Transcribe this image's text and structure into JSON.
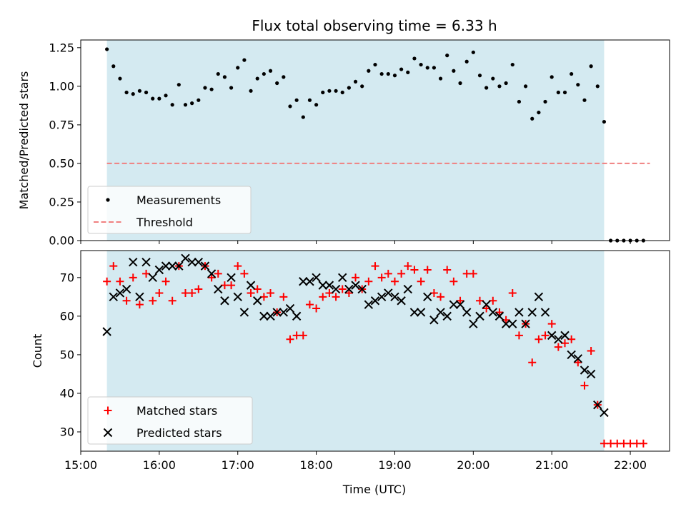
{
  "chart_data": {
    "type": "scatter",
    "title": "Flux total observing time = 6.33 h",
    "xlabel": "Time (UTC)",
    "x_ticks": [
      "15:00",
      "16:00",
      "17:00",
      "18:00",
      "19:00",
      "20:00",
      "21:00",
      "22:00"
    ],
    "xlim": [
      "15:00",
      "22:30"
    ],
    "observing_window": [
      "15:20",
      "21:40"
    ],
    "window_color": "#d4eaf1",
    "top": {
      "ylabel": "Matched/Predicted stars",
      "ylim": [
        0,
        1.3
      ],
      "y_ticks": [
        "0.00",
        "0.25",
        "0.50",
        "0.75",
        "1.00",
        "1.25"
      ],
      "legend": {
        "placement": "lower-left",
        "entries": [
          "Measurements",
          "Threshold"
        ]
      },
      "series": [
        {
          "name": "Measurements",
          "marker": "dot",
          "color": "#000000",
          "points": [
            [
              "15:20",
              1.24
            ],
            [
              "15:25",
              1.13
            ],
            [
              "15:30",
              1.05
            ],
            [
              "15:35",
              0.96
            ],
            [
              "15:40",
              0.95
            ],
            [
              "15:45",
              0.97
            ],
            [
              "15:50",
              0.96
            ],
            [
              "15:55",
              0.92
            ],
            [
              "16:00",
              0.92
            ],
            [
              "16:05",
              0.94
            ],
            [
              "16:10",
              0.88
            ],
            [
              "16:15",
              1.01
            ],
            [
              "16:20",
              0.88
            ],
            [
              "16:25",
              0.89
            ],
            [
              "16:30",
              0.91
            ],
            [
              "16:35",
              0.99
            ],
            [
              "16:40",
              0.98
            ],
            [
              "16:45",
              1.08
            ],
            [
              "16:50",
              1.06
            ],
            [
              "16:55",
              0.99
            ],
            [
              "17:00",
              1.12
            ],
            [
              "17:05",
              1.17
            ],
            [
              "17:10",
              0.97
            ],
            [
              "17:15",
              1.05
            ],
            [
              "17:20",
              1.08
            ],
            [
              "17:25",
              1.1
            ],
            [
              "17:30",
              1.02
            ],
            [
              "17:35",
              1.06
            ],
            [
              "17:40",
              0.87
            ],
            [
              "17:45",
              0.91
            ],
            [
              "17:50",
              0.8
            ],
            [
              "17:55",
              0.91
            ],
            [
              "18:00",
              0.88
            ],
            [
              "18:05",
              0.96
            ],
            [
              "18:10",
              0.97
            ],
            [
              "18:15",
              0.97
            ],
            [
              "18:20",
              0.96
            ],
            [
              "18:25",
              0.99
            ],
            [
              "18:30",
              1.03
            ],
            [
              "18:35",
              1.0
            ],
            [
              "18:40",
              1.1
            ],
            [
              "18:45",
              1.14
            ],
            [
              "18:50",
              1.08
            ],
            [
              "18:55",
              1.08
            ],
            [
              "19:00",
              1.07
            ],
            [
              "19:05",
              1.11
            ],
            [
              "19:10",
              1.09
            ],
            [
              "19:15",
              1.18
            ],
            [
              "19:20",
              1.14
            ],
            [
              "19:25",
              1.12
            ],
            [
              "19:30",
              1.12
            ],
            [
              "19:35",
              1.05
            ],
            [
              "19:40",
              1.2
            ],
            [
              "19:45",
              1.1
            ],
            [
              "19:50",
              1.02
            ],
            [
              "19:55",
              1.16
            ],
            [
              "20:00",
              1.22
            ],
            [
              "20:05",
              1.07
            ],
            [
              "20:10",
              0.99
            ],
            [
              "20:15",
              1.05
            ],
            [
              "20:20",
              1.0
            ],
            [
              "20:25",
              1.02
            ],
            [
              "20:30",
              1.14
            ],
            [
              "20:35",
              0.9
            ],
            [
              "20:40",
              1.0
            ],
            [
              "20:45",
              0.79
            ],
            [
              "20:50",
              0.83
            ],
            [
              "20:55",
              0.9
            ],
            [
              "21:00",
              1.06
            ],
            [
              "21:05",
              0.96
            ],
            [
              "21:10",
              0.96
            ],
            [
              "21:15",
              1.08
            ],
            [
              "21:20",
              1.01
            ],
            [
              "21:25",
              0.91
            ],
            [
              "21:30",
              1.13
            ],
            [
              "21:35",
              1.0
            ],
            [
              "21:40",
              0.77
            ],
            [
              "21:45",
              0.0
            ],
            [
              "21:50",
              0.0
            ],
            [
              "21:55",
              0.0
            ],
            [
              "22:00",
              0.0
            ],
            [
              "22:05",
              0.0
            ],
            [
              "22:10",
              0.0
            ]
          ]
        },
        {
          "name": "Threshold",
          "style": "dashed-line",
          "color": "#f08080",
          "points": [
            [
              "15:20",
              0.5
            ],
            [
              "22:15",
              0.5
            ]
          ]
        }
      ]
    },
    "bottom": {
      "ylabel": "Count",
      "ylim": [
        25,
        77
      ],
      "y_ticks": [
        "30",
        "40",
        "50",
        "60",
        "70"
      ],
      "legend": {
        "placement": "lower-left",
        "entries": [
          "Matched stars",
          "Predicted stars"
        ]
      },
      "series": [
        {
          "name": "Matched stars",
          "marker": "plus",
          "color": "#ff0000",
          "points": [
            [
              "15:20",
              69
            ],
            [
              "15:25",
              73
            ],
            [
              "15:30",
              69
            ],
            [
              "15:35",
              64
            ],
            [
              "15:40",
              70
            ],
            [
              "15:45",
              63
            ],
            [
              "15:50",
              71
            ],
            [
              "15:55",
              64
            ],
            [
              "16:00",
              66
            ],
            [
              "16:05",
              69
            ],
            [
              "16:10",
              64
            ],
            [
              "16:15",
              73
            ],
            [
              "16:20",
              66
            ],
            [
              "16:25",
              66
            ],
            [
              "16:30",
              67
            ],
            [
              "16:35",
              73
            ],
            [
              "16:40",
              70
            ],
            [
              "16:45",
              71
            ],
            [
              "16:50",
              68
            ],
            [
              "16:55",
              68
            ],
            [
              "17:00",
              73
            ],
            [
              "17:05",
              71
            ],
            [
              "17:10",
              66
            ],
            [
              "17:15",
              67
            ],
            [
              "17:20",
              65
            ],
            [
              "17:25",
              66
            ],
            [
              "17:30",
              61
            ],
            [
              "17:35",
              65
            ],
            [
              "17:40",
              54
            ],
            [
              "17:45",
              55
            ],
            [
              "17:50",
              55
            ],
            [
              "17:55",
              63
            ],
            [
              "18:00",
              62
            ],
            [
              "18:05",
              65
            ],
            [
              "18:10",
              66
            ],
            [
              "18:15",
              65
            ],
            [
              "18:20",
              67
            ],
            [
              "18:25",
              66
            ],
            [
              "18:30",
              70
            ],
            [
              "18:35",
              67
            ],
            [
              "18:40",
              69
            ],
            [
              "18:45",
              73
            ],
            [
              "18:50",
              70
            ],
            [
              "18:55",
              71
            ],
            [
              "19:00",
              69
            ],
            [
              "19:05",
              71
            ],
            [
              "19:10",
              73
            ],
            [
              "19:15",
              72
            ],
            [
              "19:20",
              69
            ],
            [
              "19:25",
              72
            ],
            [
              "19:30",
              66
            ],
            [
              "19:35",
              65
            ],
            [
              "19:40",
              72
            ],
            [
              "19:45",
              69
            ],
            [
              "19:50",
              64
            ],
            [
              "19:55",
              71
            ],
            [
              "20:00",
              71
            ],
            [
              "20:05",
              64
            ],
            [
              "20:10",
              62
            ],
            [
              "20:15",
              64
            ],
            [
              "20:20",
              61
            ],
            [
              "20:25",
              59
            ],
            [
              "20:30",
              66
            ],
            [
              "20:35",
              55
            ],
            [
              "20:40",
              58
            ],
            [
              "20:45",
              48
            ],
            [
              "20:50",
              54
            ],
            [
              "20:55",
              55
            ],
            [
              "21:00",
              58
            ],
            [
              "21:05",
              52
            ],
            [
              "21:10",
              53
            ],
            [
              "21:15",
              54
            ],
            [
              "21:20",
              48
            ],
            [
              "21:25",
              42
            ],
            [
              "21:30",
              51
            ],
            [
              "21:35",
              37
            ],
            [
              "21:40",
              27
            ],
            [
              "21:45",
              27
            ],
            [
              "21:50",
              27
            ],
            [
              "21:55",
              27
            ],
            [
              "22:00",
              27
            ],
            [
              "22:05",
              27
            ],
            [
              "22:10",
              27
            ]
          ]
        },
        {
          "name": "Predicted stars",
          "marker": "x",
          "color": "#000000",
          "points": [
            [
              "15:20",
              56
            ],
            [
              "15:25",
              65
            ],
            [
              "15:30",
              66
            ],
            [
              "15:35",
              67
            ],
            [
              "15:40",
              74
            ],
            [
              "15:45",
              65
            ],
            [
              "15:50",
              74
            ],
            [
              "15:55",
              70
            ],
            [
              "16:00",
              72
            ],
            [
              "16:05",
              73
            ],
            [
              "16:10",
              73
            ],
            [
              "16:15",
              73
            ],
            [
              "16:20",
              75
            ],
            [
              "16:25",
              74
            ],
            [
              "16:30",
              74
            ],
            [
              "16:35",
              73
            ],
            [
              "16:40",
              71
            ],
            [
              "16:45",
              67
            ],
            [
              "16:50",
              64
            ],
            [
              "16:55",
              70
            ],
            [
              "17:00",
              65
            ],
            [
              "17:05",
              61
            ],
            [
              "17:10",
              68
            ],
            [
              "17:15",
              64
            ],
            [
              "17:20",
              60
            ],
            [
              "17:25",
              60
            ],
            [
              "17:30",
              61
            ],
            [
              "17:35",
              61
            ],
            [
              "17:40",
              62
            ],
            [
              "17:45",
              60
            ],
            [
              "17:50",
              69
            ],
            [
              "17:55",
              69
            ],
            [
              "18:00",
              70
            ],
            [
              "18:05",
              68
            ],
            [
              "18:10",
              68
            ],
            [
              "18:15",
              67
            ],
            [
              "18:20",
              70
            ],
            [
              "18:25",
              67
            ],
            [
              "18:30",
              68
            ],
            [
              "18:35",
              67
            ],
            [
              "18:40",
              63
            ],
            [
              "18:45",
              64
            ],
            [
              "18:50",
              65
            ],
            [
              "18:55",
              66
            ],
            [
              "19:00",
              65
            ],
            [
              "19:05",
              64
            ],
            [
              "19:10",
              67
            ],
            [
              "19:15",
              61
            ],
            [
              "19:20",
              61
            ],
            [
              "19:25",
              65
            ],
            [
              "19:30",
              59
            ],
            [
              "19:35",
              61
            ],
            [
              "19:40",
              60
            ],
            [
              "19:45",
              63
            ],
            [
              "19:50",
              63
            ],
            [
              "19:55",
              61
            ],
            [
              "20:00",
              58
            ],
            [
              "20:05",
              60
            ],
            [
              "20:10",
              63
            ],
            [
              "20:15",
              61
            ],
            [
              "20:20",
              60
            ],
            [
              "20:25",
              58
            ],
            [
              "20:30",
              58
            ],
            [
              "20:35",
              61
            ],
            [
              "20:40",
              58
            ],
            [
              "20:45",
              61
            ],
            [
              "20:50",
              65
            ],
            [
              "20:55",
              61
            ],
            [
              "21:00",
              55
            ],
            [
              "21:05",
              54
            ],
            [
              "21:10",
              55
            ],
            [
              "21:15",
              50
            ],
            [
              "21:20",
              49
            ],
            [
              "21:25",
              46
            ],
            [
              "21:30",
              45
            ],
            [
              "21:35",
              37
            ],
            [
              "21:40",
              35
            ]
          ]
        }
      ]
    }
  }
}
